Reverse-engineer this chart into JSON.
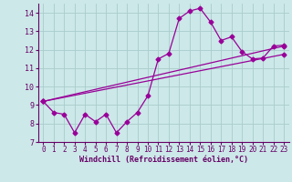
{
  "line1_x": [
    0,
    1,
    2,
    3,
    4,
    5,
    6,
    7,
    8,
    9,
    10,
    11,
    12,
    13,
    14,
    15,
    16,
    17,
    18,
    19,
    20,
    21,
    22,
    23
  ],
  "line1_y": [
    9.2,
    8.6,
    8.5,
    7.5,
    8.5,
    8.1,
    8.5,
    7.5,
    8.1,
    8.6,
    9.5,
    11.5,
    11.8,
    13.7,
    14.1,
    14.25,
    13.5,
    12.5,
    12.7,
    11.9,
    11.5,
    11.55,
    12.2,
    12.25
  ],
  "line2_x": [
    0,
    23
  ],
  "line2_y": [
    9.2,
    12.2
  ],
  "line3_x": [
    0,
    23
  ],
  "line3_y": [
    9.2,
    11.75
  ],
  "line_color": "#990099",
  "marker": "D",
  "markersize": 2.5,
  "xlim": [
    -0.5,
    23.5
  ],
  "ylim": [
    7,
    14.5
  ],
  "yticks": [
    7,
    8,
    9,
    10,
    11,
    12,
    13,
    14
  ],
  "xticks": [
    0,
    1,
    2,
    3,
    4,
    5,
    6,
    7,
    8,
    9,
    10,
    11,
    12,
    13,
    14,
    15,
    16,
    17,
    18,
    19,
    20,
    21,
    22,
    23
  ],
  "xlabel": "Windchill (Refroidissement éolien,°C)",
  "bg_color": "#cce8e8",
  "grid_color": "#aacccc",
  "label_color": "#660066"
}
